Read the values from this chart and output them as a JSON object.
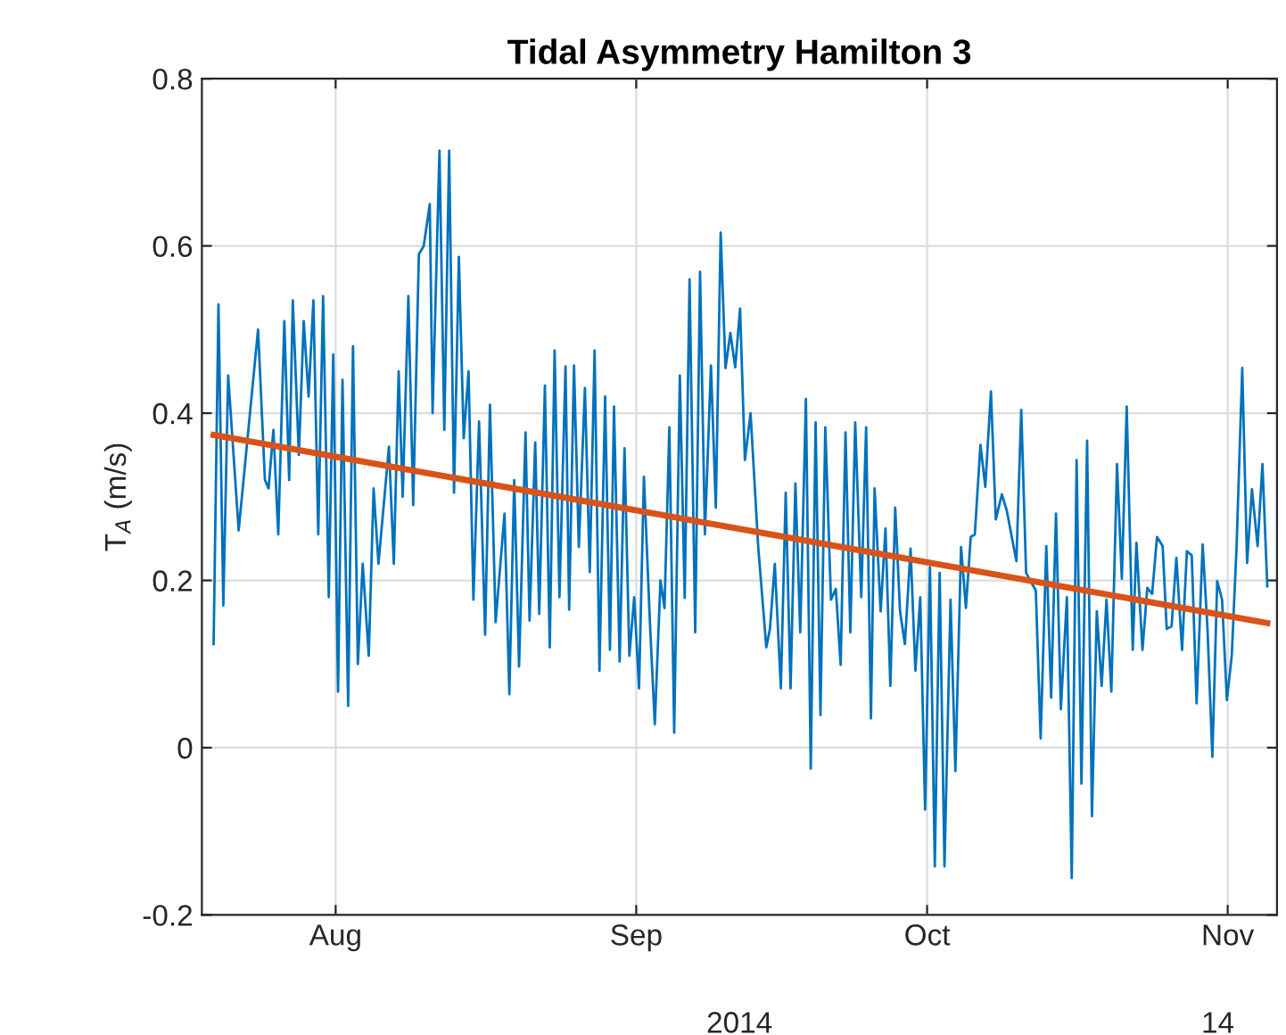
{
  "chart_data": {
    "type": "line",
    "title": "Tidal Asymmetry Hamilton 3",
    "ylabel": "T$_{A}$ (m/s)",
    "series": [
      {
        "color": "#0072bd",
        "x": [
          "2014-07-19T10:00",
          "2014-07-19T22:00",
          "2014-07-20T10:00",
          "2014-07-20T22:00",
          "2014-07-22T00:00",
          "2014-07-22T22:00",
          "2014-07-24T00:00",
          "2014-07-24T17:00",
          "2014-07-25T02:00",
          "2014-07-25T14:00",
          "2014-07-26T02:00",
          "2014-07-26T17:00",
          "2014-07-27T05:00",
          "2014-07-27T14:00",
          "2014-07-28T05:00",
          "2014-07-28T17:00",
          "2014-07-29T05:00",
          "2014-07-29T17:00",
          "2014-07-30T05:00",
          "2014-07-30T17:00",
          "2014-07-31T07:00",
          "2014-07-31T18:00",
          "2014-08-01T06:00",
          "2014-08-01T17:00",
          "2014-08-02T07:00",
          "2014-08-02T19:00",
          "2014-08-03T07:00",
          "2014-08-03T19:00",
          "2014-08-04T10:00",
          "2014-08-04T22:00",
          "2014-08-05T10:00",
          "2014-08-06T12:00",
          "2014-08-07T00:00",
          "2014-08-07T12:00",
          "2014-08-07T22:00",
          "2014-08-08T12:00",
          "2014-08-09T00:00",
          "2014-08-09T14:00",
          "2014-08-10T02:00",
          "2014-08-10T17:00",
          "2014-08-11T00:00",
          "2014-08-11T17:00",
          "2014-08-12T05:00",
          "2014-08-12T17:00",
          "2014-08-13T05:00",
          "2014-08-13T17:00",
          "2014-08-14T05:00",
          "2014-08-14T17:00",
          "2014-08-15T05:00",
          "2014-08-15T19:00",
          "2014-08-16T10:00",
          "2014-08-16T22:00",
          "2014-08-17T12:00",
          "2014-08-18T10:00",
          "2014-08-18T22:00",
          "2014-08-19T10:00",
          "2014-08-19T22:00",
          "2014-08-20T14:00",
          "2014-08-21T00:00",
          "2014-08-21T14:00",
          "2014-08-22T00:00",
          "2014-08-22T14:00",
          "2014-08-23T02:00",
          "2014-08-23T14:00",
          "2014-08-24T02:00",
          "2014-08-24T17:00",
          "2014-08-25T02:00",
          "2014-08-25T14:00",
          "2014-08-26T02:00",
          "2014-08-26T17:00",
          "2014-08-27T05:00",
          "2014-08-27T17:00",
          "2014-08-28T05:00",
          "2014-08-28T19:00",
          "2014-08-29T07:00",
          "2014-08-29T17:00",
          "2014-08-30T07:00",
          "2014-08-30T19:00",
          "2014-08-31T07:00",
          "2014-08-31T19:00",
          "2014-09-01T07:00",
          "2014-09-01T19:00",
          "2014-09-02T10:00",
          "2014-09-02T22:00",
          "2014-09-03T12:00",
          "2014-09-03T22:00",
          "2014-09-04T10:00",
          "2014-09-04T22:00",
          "2014-09-05T12:00",
          "2014-09-06T00:00",
          "2014-09-06T12:00",
          "2014-09-07T02:00",
          "2014-09-07T14:00",
          "2014-09-08T02:00",
          "2014-09-08T17:00",
          "2014-09-09T05:00",
          "2014-09-09T17:00",
          "2014-09-10T05:00",
          "2014-09-10T17:00",
          "2014-09-11T05:00",
          "2014-09-11T17:00",
          "2014-09-12T05:00",
          "2014-09-12T19:00",
          "2014-09-13T14:00",
          "2014-09-14T10:00",
          "2014-09-14T19:00",
          "2014-09-15T07:00",
          "2014-09-15T22:00",
          "2014-09-16T10:00",
          "2014-09-16T22:00",
          "2014-09-17T10:00",
          "2014-09-17T22:00",
          "2014-09-18T12:00",
          "2014-09-19T00:00",
          "2014-09-19T12:00",
          "2014-09-20T00:00",
          "2014-09-20T12:00",
          "2014-09-21T02:00",
          "2014-09-21T14:00",
          "2014-09-22T02:00",
          "2014-09-22T14:00",
          "2014-09-23T02:00",
          "2014-09-23T14:00",
          "2014-09-24T05:00",
          "2014-09-24T17:00",
          "2014-09-25T05:00",
          "2014-09-25T14:00",
          "2014-09-26T05:00",
          "2014-09-26T17:00",
          "2014-09-27T05:00",
          "2014-09-27T17:00",
          "2014-09-28T05:00",
          "2014-09-28T17:00",
          "2014-09-29T07:00",
          "2014-09-29T19:00",
          "2014-09-30T07:00",
          "2014-09-30T19:00",
          "2014-10-01T07:00",
          "2014-10-01T19:00",
          "2014-10-02T07:00",
          "2014-10-02T19:00",
          "2014-10-03T10:00",
          "2014-10-03T22:00",
          "2014-10-04T12:00",
          "2014-10-05T00:00",
          "2014-10-05T12:00",
          "2014-10-05T22:00",
          "2014-10-06T12:00",
          "2014-10-07T00:00",
          "2014-10-07T14:00",
          "2014-10-08T02:00",
          "2014-10-08T17:00",
          "2014-10-09T05:00",
          "2014-10-10T05:00",
          "2014-10-10T17:00",
          "2014-10-11T05:00",
          "2014-10-12T05:00",
          "2014-10-12T17:00",
          "2014-10-13T07:00",
          "2014-10-13T19:00",
          "2014-10-14T07:00",
          "2014-10-14T19:00",
          "2014-10-15T10:00",
          "2014-10-15T22:00",
          "2014-10-16T10:00",
          "2014-10-16T22:00",
          "2014-10-17T12:00",
          "2014-10-18T00:00",
          "2014-10-18T12:00",
          "2014-10-19T00:00",
          "2014-10-19T12:00",
          "2014-10-20T00:00",
          "2014-10-20T14:00",
          "2014-10-21T02:00",
          "2014-10-21T14:00",
          "2014-10-22T05:00",
          "2014-10-22T14:00",
          "2014-10-23T05:00",
          "2014-10-23T17:00",
          "2014-10-24T05:00",
          "2014-10-24T17:00",
          "2014-10-25T07:00",
          "2014-10-25T17:00",
          "2014-10-26T05:00",
          "2014-10-26T17:00",
          "2014-10-27T07:00",
          "2014-10-27T19:00",
          "2014-10-28T07:00",
          "2014-10-28T19:00",
          "2014-10-29T10:00",
          "2014-10-29T22:00",
          "2014-10-30T10:00",
          "2014-10-30T22:00",
          "2014-10-31T10:00",
          "2014-10-31T22:00",
          "2014-11-01T10:00",
          "2014-11-01T22:00",
          "2014-11-02T12:00",
          "2014-11-03T00:00",
          "2014-11-03T12:00",
          "2014-11-04T02:00",
          "2014-11-04T14:00",
          "2014-11-05T02:00"
        ],
        "values": [
          0.124,
          0.53,
          0.17,
          0.445,
          0.26,
          0.37,
          0.5,
          0.32,
          0.31,
          0.38,
          0.255,
          0.51,
          0.32,
          0.535,
          0.35,
          0.51,
          0.42,
          0.535,
          0.255,
          0.54,
          0.18,
          0.47,
          0.067,
          0.44,
          0.05,
          0.48,
          0.1,
          0.22,
          0.11,
          0.31,
          0.22,
          0.36,
          0.22,
          0.45,
          0.3,
          0.54,
          0.29,
          0.59,
          0.6,
          0.65,
          0.4,
          0.714,
          0.38,
          0.714,
          0.305,
          0.587,
          0.37,
          0.45,
          0.177,
          0.39,
          0.135,
          0.41,
          0.15,
          0.28,
          0.064,
          0.32,
          0.097,
          0.377,
          0.152,
          0.365,
          0.16,
          0.433,
          0.12,
          0.475,
          0.18,
          0.456,
          0.165,
          0.457,
          0.24,
          0.43,
          0.21,
          0.475,
          0.092,
          0.42,
          0.117,
          0.408,
          0.103,
          0.358,
          0.11,
          0.18,
          0.071,
          0.324,
          0.149,
          0.028,
          0.2,
          0.167,
          0.383,
          0.018,
          0.445,
          0.179,
          0.56,
          0.138,
          0.569,
          0.255,
          0.457,
          0.287,
          0.616,
          0.454,
          0.496,
          0.455,
          0.525,
          0.344,
          0.4,
          0.24,
          0.12,
          0.142,
          0.22,
          0.071,
          0.305,
          0.071,
          0.316,
          0.138,
          0.417,
          -0.025,
          0.389,
          0.039,
          0.383,
          0.177,
          0.19,
          0.099,
          0.377,
          0.138,
          0.389,
          0.18,
          0.383,
          0.035,
          0.31,
          0.163,
          0.262,
          0.074,
          0.287,
          0.163,
          0.124,
          0.238,
          0.092,
          0.18,
          -0.074,
          0.216,
          -0.142,
          0.209,
          -0.142,
          0.177,
          -0.028,
          0.24,
          0.167,
          0.252,
          0.255,
          0.362,
          0.312,
          0.426,
          0.273,
          0.303,
          0.284,
          0.223,
          0.404,
          0.209,
          0.188,
          0.011,
          0.241,
          0.06,
          0.28,
          0.046,
          0.18,
          -0.156,
          0.344,
          -0.043,
          0.367,
          -0.082,
          0.163,
          0.074,
          0.177,
          0.067,
          0.339,
          0.202,
          0.408,
          0.117,
          0.245,
          0.117,
          0.191,
          0.184,
          0.252,
          0.241,
          0.142,
          0.145,
          0.227,
          0.117,
          0.235,
          0.23,
          0.053,
          0.243,
          0.142,
          -0.011,
          0.199,
          0.177,
          0.057,
          0.11,
          0.241,
          0.454,
          0.221,
          0.309,
          0.241,
          0.339,
          0.193
        ]
      },
      {
        "color": "#d95319",
        "x": [
          "2014-07-19T10:00",
          "2014-11-05T02:00"
        ],
        "values": [
          0.374,
          0.149
        ]
      }
    ],
    "xlim": [
      "2014-07-18T05:00",
      "2014-11-06T02:00"
    ],
    "xticks": [
      {
        "value": "2014-08-01",
        "label": "Aug"
      },
      {
        "value": "2014-09-01",
        "label": "Sep"
      },
      {
        "value": "2014-10-01",
        "label": "Oct"
      },
      {
        "value": "2014-11-01",
        "label": "Nov"
      }
    ],
    "ylim": [
      -0.2,
      0.8
    ],
    "yticks": [
      -0.2,
      0,
      0.2,
      0.4,
      0.6,
      0.8
    ],
    "grid": true,
    "legend": false,
    "marker": "none",
    "line_style": "solid",
    "annotations": [
      "2014",
      "14"
    ]
  }
}
